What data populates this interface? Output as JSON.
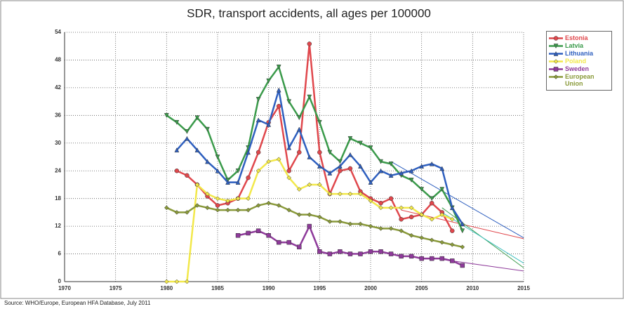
{
  "chart_data": {
    "type": "line",
    "title": "SDR, transport accidents, all ages per 100000",
    "source": "Source: WHO/Europe, European HFA Database, July 2011",
    "x": [
      1980,
      1981,
      1982,
      1983,
      1984,
      1985,
      1986,
      1987,
      1988,
      1989,
      1990,
      1991,
      1992,
      1993,
      1994,
      1995,
      1996,
      1997,
      1998,
      1999,
      2000,
      2001,
      2002,
      2003,
      2004,
      2005,
      2006,
      2007,
      2008,
      2009
    ],
    "series": [
      {
        "name": "Estonia",
        "color": "#e0474c",
        "marker": "circle",
        "values": [
          null,
          24,
          23,
          21,
          18.5,
          16.5,
          17,
          18,
          22.5,
          28,
          34.5,
          38,
          24,
          28,
          51.5,
          28,
          19,
          24,
          24.5,
          19.5,
          18,
          17,
          18,
          13.5,
          14,
          14.5,
          17,
          15,
          11,
          null
        ]
      },
      {
        "name": "Latvia",
        "color": "#3a9a4a",
        "marker": "triangle-down",
        "values": [
          36,
          34.5,
          32.5,
          35.5,
          33,
          27,
          22,
          24,
          29,
          39.5,
          43.5,
          46.5,
          39,
          35.5,
          40,
          34.5,
          28,
          26,
          31,
          30,
          29,
          26,
          25.5,
          23,
          22,
          20,
          18,
          20,
          16,
          11
        ]
      },
      {
        "name": "Lithuania",
        "color": "#2e5fbf",
        "marker": "triangle-up",
        "values": [
          null,
          28.5,
          31,
          28.5,
          26,
          24,
          21.5,
          21.5,
          28,
          35,
          34,
          41.5,
          29,
          33,
          27,
          25,
          23.5,
          25,
          27.5,
          25,
          21.5,
          24,
          23,
          23.5,
          24,
          25,
          25.5,
          24.5,
          16,
          12.5
        ]
      },
      {
        "name": "Poland",
        "color": "#f2e84a",
        "marker": "diamond",
        "values": [
          0,
          0,
          0,
          21,
          19,
          18,
          17.5,
          18,
          18,
          24,
          26,
          26.5,
          22.5,
          20,
          21,
          21,
          19,
          19,
          19,
          19,
          17.5,
          16,
          16,
          16,
          16,
          14.5,
          13.5,
          14.5,
          13.5,
          null
        ]
      },
      {
        "name": "Sweden",
        "color": "#8e3a9a",
        "marker": "square",
        "values": [
          null,
          null,
          null,
          null,
          null,
          null,
          null,
          10,
          10.5,
          11,
          10,
          8.5,
          8.5,
          7.5,
          12,
          6.5,
          6,
          6.5,
          6,
          6,
          6.5,
          6.5,
          6,
          5.5,
          5.5,
          5,
          5,
          5,
          4.5,
          3.5
        ]
      },
      {
        "name": "European Union",
        "color": "#8a9a3a",
        "marker": "diamond",
        "values": [
          16,
          15,
          15,
          16.5,
          16,
          15.5,
          15.5,
          15.5,
          15.5,
          16.5,
          17,
          16.5,
          15.5,
          14.5,
          14.5,
          14,
          13,
          13,
          12.5,
          12.5,
          12,
          11.5,
          11.5,
          11,
          10,
          9.5,
          9,
          8.5,
          8,
          7.5
        ]
      }
    ],
    "trendlines": [
      {
        "color": "#2e5fbf",
        "x": [
          2002,
          2015
        ],
        "values": [
          26,
          9.5
        ]
      },
      {
        "color": "#e0474c",
        "x": [
          2003,
          2015
        ],
        "values": [
          15.5,
          9.3
        ]
      },
      {
        "color": "#3a9a4a",
        "x": [
          2007,
          2015
        ],
        "values": [
          16,
          3
        ]
      },
      {
        "color": "#40c0c0",
        "x": [
          2007,
          2015
        ],
        "values": [
          15,
          4
        ]
      },
      {
        "color": "#8e3a9a",
        "x": [
          2007,
          2015
        ],
        "values": [
          4.8,
          2.3
        ]
      }
    ],
    "xlim": [
      1970,
      2015
    ],
    "xticks": [
      1970,
      1975,
      1980,
      1985,
      1990,
      1995,
      2000,
      2005,
      2010,
      2015
    ],
    "ylim": [
      0,
      54
    ],
    "yticks": [
      0,
      6,
      12,
      18,
      24,
      30,
      36,
      42,
      48,
      54
    ],
    "grid": true,
    "legend": "top-right"
  }
}
